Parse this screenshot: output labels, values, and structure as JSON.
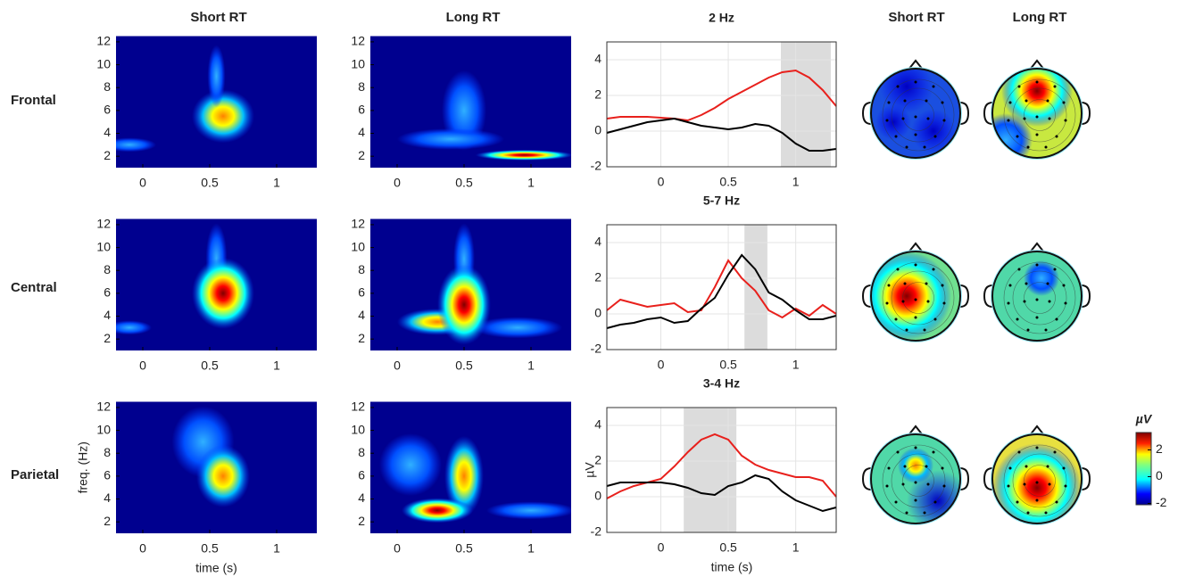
{
  "column_headers": [
    {
      "text": "Short RT",
      "color": "#000000"
    },
    {
      "text": "Long RT",
      "color": "#e8201c"
    },
    {
      "text": "Short RT",
      "color": "#000000"
    },
    {
      "text": "Long RT",
      "color": "#e8201c"
    }
  ],
  "row_labels": [
    "Frontal",
    "Central",
    "Parietal"
  ],
  "chart_data": [
    {
      "type": "heatmap",
      "xlim": [
        -0.2,
        1.3
      ],
      "ylim": [
        1,
        12.5
      ],
      "xticks": [
        0,
        0.5,
        1
      ],
      "yticks": [
        2,
        4,
        6,
        8,
        10,
        12
      ]
    },
    {
      "type": "heatmap",
      "xlim": [
        -0.2,
        1.3
      ],
      "ylim": [
        1,
        12.5
      ],
      "xticks": [
        0,
        0.5,
        1
      ],
      "yticks": [
        2,
        4,
        6,
        8,
        10,
        12
      ]
    },
    {
      "type": "line",
      "title": "2 Hz",
      "xlim": [
        -0.4,
        1.3
      ],
      "ylim": [
        -2,
        5
      ],
      "xticks": [
        0,
        0.5,
        1
      ],
      "yticks": [
        -2,
        0,
        2,
        4
      ],
      "grid": true,
      "shade": [
        0.89,
        1.26
      ],
      "x": [
        -0.4,
        -0.3,
        -0.2,
        -0.1,
        0,
        0.1,
        0.2,
        0.3,
        0.4,
        0.5,
        0.6,
        0.7,
        0.8,
        0.9,
        1.0,
        1.1,
        1.2,
        1.3
      ],
      "series": [
        {
          "color": "#e8201c",
          "values": [
            0.7,
            0.8,
            0.8,
            0.8,
            0.75,
            0.7,
            0.6,
            0.9,
            1.3,
            1.8,
            2.2,
            2.6,
            3.0,
            3.3,
            3.4,
            3.0,
            2.3,
            1.4
          ]
        },
        {
          "color": "#000000",
          "values": [
            -0.1,
            0.1,
            0.3,
            0.5,
            0.6,
            0.7,
            0.5,
            0.3,
            0.2,
            0.1,
            0.2,
            0.4,
            0.3,
            -0.1,
            -0.7,
            -1.1,
            -1.1,
            -1.0
          ]
        }
      ]
    },
    {
      "type": "topomap"
    },
    {
      "type": "topomap"
    },
    {
      "type": "heatmap",
      "xlim": [
        -0.2,
        1.3
      ],
      "ylim": [
        1,
        12.5
      ],
      "xticks": [
        0,
        0.5,
        1
      ],
      "yticks": [
        2,
        4,
        6,
        8,
        10,
        12
      ]
    },
    {
      "type": "heatmap",
      "xlim": [
        -0.2,
        1.3
      ],
      "ylim": [
        1,
        12.5
      ],
      "xticks": [
        0,
        0.5,
        1
      ],
      "yticks": [
        2,
        4,
        6,
        8,
        10,
        12
      ]
    },
    {
      "type": "line",
      "title": "5-7 Hz",
      "xlim": [
        -0.4,
        1.3
      ],
      "ylim": [
        -2,
        5
      ],
      "xticks": [
        0,
        0.5,
        1
      ],
      "yticks": [
        -2,
        0,
        2,
        4
      ],
      "grid": true,
      "shade": [
        0.62,
        0.79
      ],
      "x": [
        -0.4,
        -0.3,
        -0.2,
        -0.1,
        0,
        0.1,
        0.2,
        0.3,
        0.4,
        0.5,
        0.6,
        0.7,
        0.8,
        0.9,
        1.0,
        1.1,
        1.2,
        1.3
      ],
      "series": [
        {
          "color": "#e8201c",
          "values": [
            0.2,
            0.8,
            0.6,
            0.4,
            0.5,
            0.6,
            0.1,
            0.2,
            1.5,
            3.0,
            2.0,
            1.3,
            0.2,
            -0.2,
            0.3,
            -0.1,
            0.5,
            0.0
          ]
        },
        {
          "color": "#000000",
          "values": [
            -0.8,
            -0.6,
            -0.5,
            -0.3,
            -0.2,
            -0.5,
            -0.4,
            0.3,
            0.9,
            2.2,
            3.3,
            2.5,
            1.2,
            0.8,
            0.2,
            -0.3,
            -0.3,
            -0.1
          ]
        }
      ]
    },
    {
      "type": "topomap"
    },
    {
      "type": "topomap"
    },
    {
      "type": "heatmap",
      "xlim": [
        -0.2,
        1.3
      ],
      "ylim": [
        1,
        12.5
      ],
      "xticks": [
        0,
        0.5,
        1
      ],
      "yticks": [
        2,
        4,
        6,
        8,
        10,
        12
      ],
      "xlabel": "time (s)",
      "ylabel": "freq. (Hz)"
    },
    {
      "type": "heatmap",
      "xlim": [
        -0.2,
        1.3
      ],
      "ylim": [
        1,
        12.5
      ],
      "xticks": [
        0,
        0.5,
        1
      ],
      "yticks": [
        2,
        4,
        6,
        8,
        10,
        12
      ]
    },
    {
      "type": "line",
      "title": "3-4 Hz",
      "xlim": [
        -0.4,
        1.3
      ],
      "ylim": [
        -2,
        5
      ],
      "xticks": [
        0,
        0.5,
        1
      ],
      "yticks": [
        -2,
        0,
        2,
        4
      ],
      "grid": true,
      "shade": [
        0.17,
        0.56
      ],
      "xlabel": "time (s)",
      "ylabel": "µV",
      "x": [
        -0.4,
        -0.3,
        -0.2,
        -0.1,
        0,
        0.1,
        0.2,
        0.3,
        0.4,
        0.5,
        0.6,
        0.7,
        0.8,
        0.9,
        1.0,
        1.1,
        1.2,
        1.3
      ],
      "series": [
        {
          "color": "#e8201c",
          "values": [
            -0.1,
            0.3,
            0.6,
            0.8,
            1.0,
            1.7,
            2.5,
            3.2,
            3.5,
            3.2,
            2.3,
            1.8,
            1.5,
            1.3,
            1.1,
            1.1,
            0.9,
            0.0
          ]
        },
        {
          "color": "#000000",
          "values": [
            0.6,
            0.8,
            0.8,
            0.8,
            0.8,
            0.7,
            0.5,
            0.2,
            0.1,
            0.6,
            0.8,
            1.2,
            1.0,
            0.3,
            -0.2,
            -0.5,
            -0.8,
            -0.6
          ]
        }
      ]
    },
    {
      "type": "topomap"
    },
    {
      "type": "topomap"
    },
    {
      "type": "colorbar",
      "label": "µV",
      "ylim": [
        -2.1,
        3.3
      ],
      "yticks": [
        -2,
        0,
        2
      ]
    }
  ]
}
